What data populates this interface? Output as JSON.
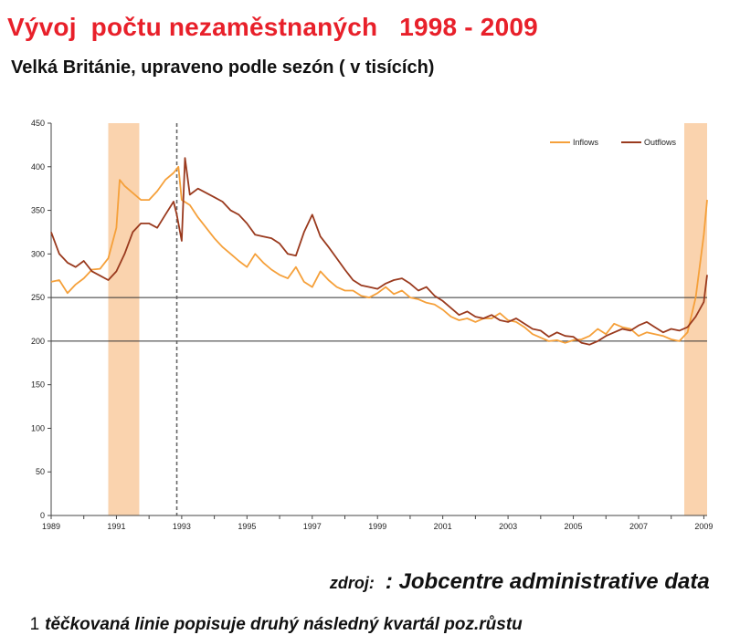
{
  "title": "Vývoj  počtu nezaměstnaných   1998 - 2009",
  "subtitle": "Velká Británie, upraveno podle sezón ( v tisících)",
  "source": {
    "label": "zdroj:",
    "value": ": Jobcentre administrative data"
  },
  "footnote": {
    "number": "1",
    "text": "těčkovaná linie popisuje druhý následný kvartál poz.růstu"
  },
  "colors": {
    "inflows": "#f5a03a",
    "outflows": "#9a3a1e",
    "shade": "#fad3ae",
    "title": "#e8202a"
  },
  "chart_data": {
    "type": "line",
    "title": "",
    "xlabel": "",
    "ylabel": "",
    "xlim": [
      1989,
      2009.1
    ],
    "ylim": [
      0,
      450
    ],
    "yticks": [
      0,
      50,
      100,
      150,
      200,
      250,
      300,
      350,
      400,
      450
    ],
    "xticks": [
      "1989",
      "1991",
      "1993",
      "1995",
      "1997",
      "1999",
      "2001",
      "2003",
      "2005",
      "2007",
      "2009"
    ],
    "grid": false,
    "legend_position": "top-right",
    "reference_lines": [
      250,
      200
    ],
    "recession_shading": [
      [
        1990.75,
        1991.7
      ],
      [
        2008.4,
        2009.1
      ]
    ],
    "dotted_marker_x": 1992.85,
    "series": [
      {
        "name": "Inflows",
        "x": [
          1989.0,
          1989.25,
          1989.5,
          1989.75,
          1990.0,
          1990.25,
          1990.5,
          1990.75,
          1991.0,
          1991.1,
          1991.25,
          1991.5,
          1991.75,
          1992.0,
          1992.25,
          1992.5,
          1992.75,
          1992.9,
          1993.0,
          1993.25,
          1993.5,
          1993.75,
          1994.0,
          1994.25,
          1994.5,
          1994.75,
          1995.0,
          1995.25,
          1995.5,
          1995.75,
          1996.0,
          1996.25,
          1996.5,
          1996.75,
          1997.0,
          1997.25,
          1997.5,
          1997.75,
          1998.0,
          1998.25,
          1998.5,
          1998.75,
          1999.0,
          1999.25,
          1999.5,
          1999.75,
          2000.0,
          2000.25,
          2000.5,
          2000.75,
          2001.0,
          2001.25,
          2001.5,
          2001.75,
          2002.0,
          2002.25,
          2002.5,
          2002.75,
          2003.0,
          2003.25,
          2003.5,
          2003.75,
          2004.0,
          2004.25,
          2004.5,
          2004.75,
          2005.0,
          2005.25,
          2005.5,
          2005.75,
          2006.0,
          2006.25,
          2006.5,
          2006.75,
          2007.0,
          2007.25,
          2007.5,
          2007.75,
          2008.0,
          2008.25,
          2008.5,
          2008.75,
          2009.0,
          2009.1
        ],
        "values": [
          268,
          270,
          255,
          265,
          272,
          282,
          283,
          295,
          330,
          385,
          378,
          370,
          362,
          362,
          372,
          385,
          393,
          400,
          362,
          356,
          342,
          330,
          318,
          308,
          300,
          292,
          285,
          300,
          290,
          282,
          276,
          272,
          285,
          268,
          262,
          280,
          270,
          262,
          258,
          258,
          252,
          250,
          255,
          262,
          254,
          258,
          250,
          248,
          244,
          242,
          236,
          228,
          224,
          226,
          222,
          226,
          226,
          232,
          224,
          222,
          216,
          208,
          204,
          200,
          201,
          198,
          201,
          202,
          206,
          214,
          208,
          220,
          216,
          214,
          206,
          210,
          208,
          206,
          202,
          200,
          210,
          250,
          322,
          362
        ]
      },
      {
        "name": "Outflows",
        "x": [
          1989.0,
          1989.25,
          1989.5,
          1989.75,
          1990.0,
          1990.25,
          1990.5,
          1990.75,
          1991.0,
          1991.25,
          1991.5,
          1991.75,
          1992.0,
          1992.25,
          1992.5,
          1992.75,
          1992.85,
          1993.0,
          1993.1,
          1993.25,
          1993.5,
          1993.75,
          1994.0,
          1994.25,
          1994.5,
          1994.75,
          1995.0,
          1995.25,
          1995.5,
          1995.75,
          1996.0,
          1996.25,
          1996.5,
          1996.75,
          1997.0,
          1997.25,
          1997.5,
          1997.75,
          1998.0,
          1998.25,
          1998.5,
          1998.75,
          1999.0,
          1999.25,
          1999.5,
          1999.75,
          2000.0,
          2000.25,
          2000.5,
          2000.75,
          2001.0,
          2001.25,
          2001.5,
          2001.75,
          2002.0,
          2002.25,
          2002.5,
          2002.75,
          2003.0,
          2003.25,
          2003.5,
          2003.75,
          2004.0,
          2004.25,
          2004.5,
          2004.75,
          2005.0,
          2005.25,
          2005.5,
          2005.75,
          2006.0,
          2006.25,
          2006.5,
          2006.75,
          2007.0,
          2007.25,
          2007.5,
          2007.75,
          2008.0,
          2008.25,
          2008.5,
          2008.75,
          2009.0,
          2009.1
        ],
        "values": [
          325,
          300,
          290,
          285,
          292,
          280,
          275,
          270,
          280,
          300,
          325,
          335,
          335,
          330,
          345,
          360,
          345,
          315,
          410,
          368,
          375,
          370,
          365,
          360,
          350,
          345,
          335,
          322,
          320,
          318,
          312,
          300,
          298,
          325,
          345,
          320,
          308,
          295,
          282,
          270,
          264,
          262,
          260,
          266,
          270,
          272,
          266,
          258,
          262,
          252,
          246,
          238,
          230,
          234,
          228,
          226,
          230,
          224,
          222,
          226,
          220,
          214,
          212,
          205,
          210,
          206,
          205,
          198,
          196,
          200,
          206,
          210,
          214,
          212,
          218,
          222,
          216,
          210,
          214,
          212,
          216,
          228,
          245,
          276
        ]
      }
    ]
  }
}
